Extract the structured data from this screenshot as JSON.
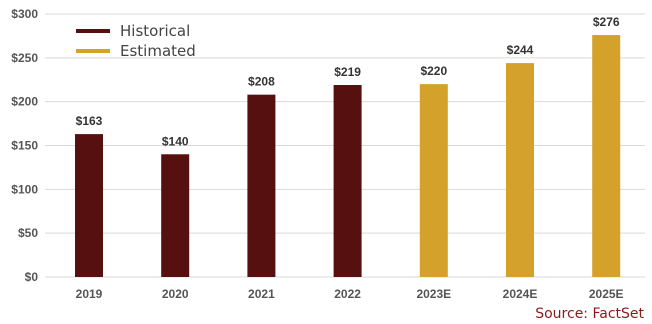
{
  "chart_data": {
    "type": "bar",
    "categories": [
      "2019",
      "2020",
      "2021",
      "2022",
      "2023E",
      "2024E",
      "2025E"
    ],
    "values": [
      163,
      140,
      208,
      219,
      220,
      244,
      276
    ],
    "value_labels": [
      "$163",
      "$140",
      "$208",
      "$219",
      "$220",
      "$244",
      "$276"
    ],
    "bar_series": [
      "Historical",
      "Historical",
      "Historical",
      "Historical",
      "Estimated",
      "Estimated",
      "Estimated"
    ],
    "series": [
      {
        "name": "Historical",
        "color": "#561010"
      },
      {
        "name": "Estimated",
        "color": "#d4a12a"
      }
    ],
    "yticks": [
      0,
      50,
      100,
      150,
      200,
      250,
      300
    ],
    "ytick_labels": [
      "$0",
      "$50",
      "$100",
      "$150",
      "$200",
      "$250",
      "$300"
    ],
    "ylim": [
      0,
      300
    ],
    "grid": "horizontal",
    "legend_position": "top-left",
    "source": "Source: FactSet"
  }
}
